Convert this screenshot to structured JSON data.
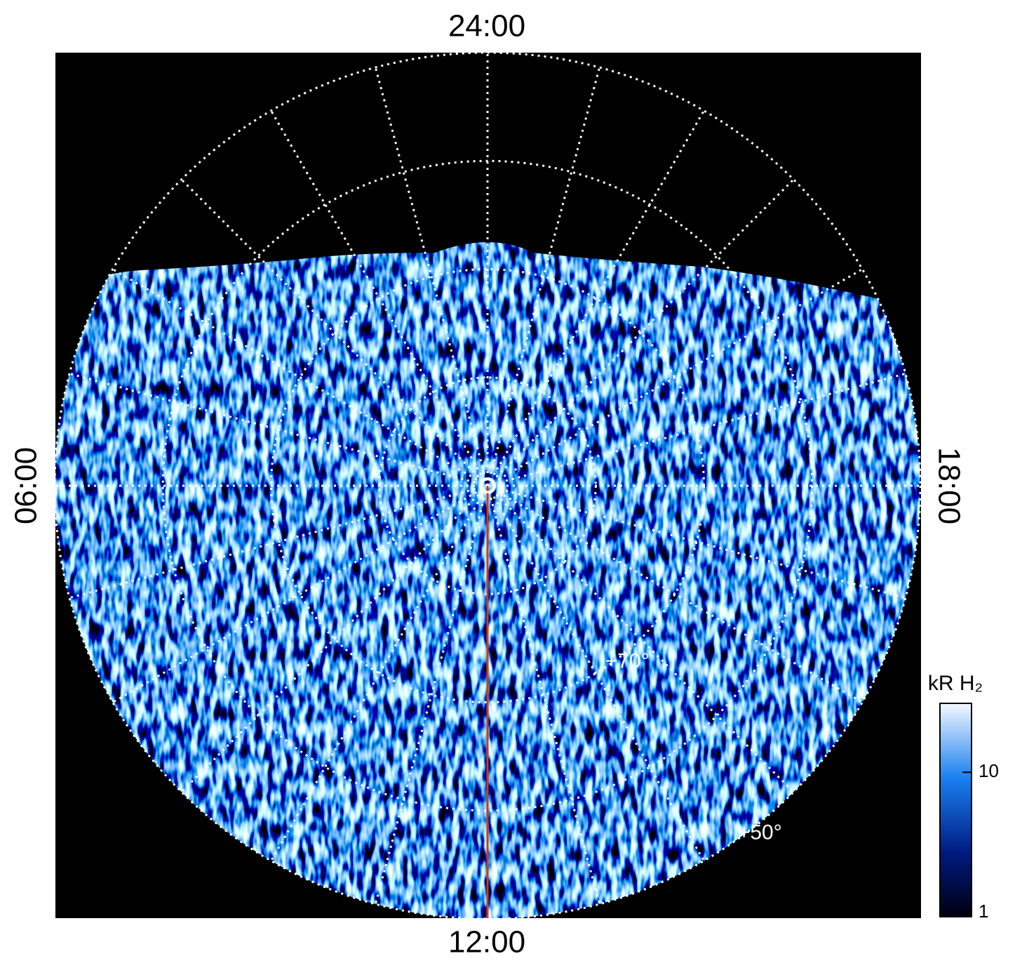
{
  "chart_data": {
    "type": "polar_image",
    "hour_labels": {
      "top": "24:00",
      "bottom": "12:00",
      "left": "06:00",
      "right": "18:00"
    },
    "latlim": [
      90,
      50
    ],
    "lat_grid": [
      50,
      60,
      70,
      80
    ],
    "lat_ticks": [
      {
        "value": 70,
        "label": "+70°"
      },
      {
        "value": 50,
        "label": "+50°"
      }
    ],
    "colorbar": {
      "label": "kR H₂",
      "clim": [
        1,
        30
      ],
      "log": true,
      "ticks": [
        1,
        10
      ]
    }
  }
}
